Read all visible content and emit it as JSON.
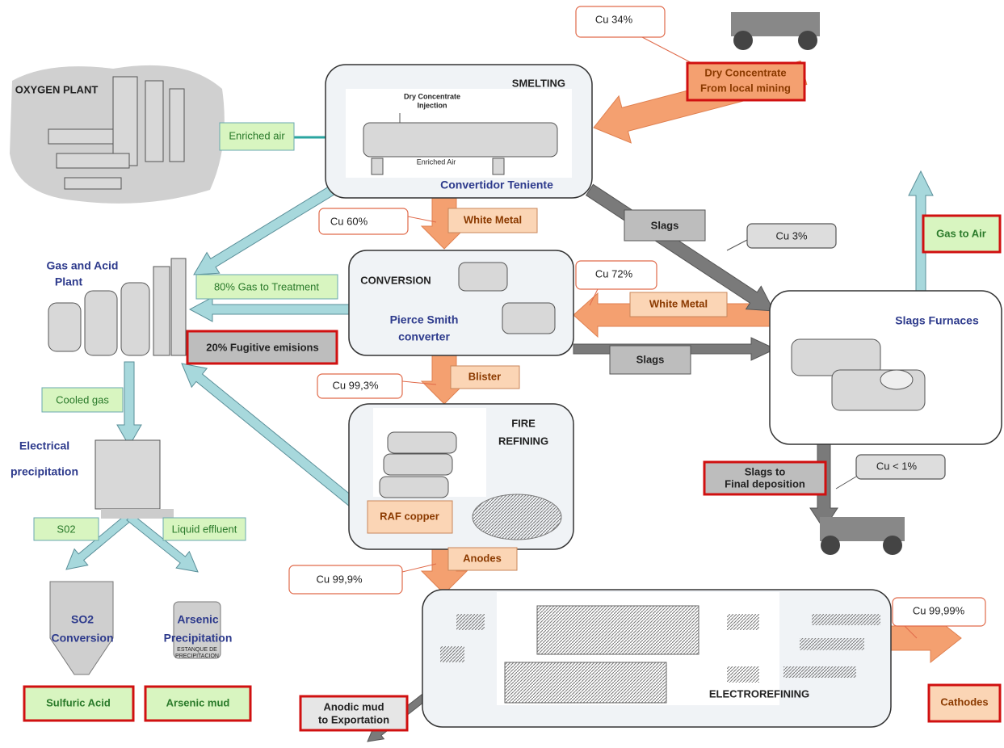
{
  "smelting": {
    "title": "SMELTING",
    "caption": "Convertidor Teniente",
    "injection": [
      "Dry Concentrate",
      "Injection"
    ],
    "air": "Enriched Air"
  },
  "conversion": {
    "title": "CONVERSION",
    "caption": [
      "Pierce Smith",
      "converter"
    ]
  },
  "fire_refining": {
    "title": [
      "FIRE",
      "REFINING"
    ],
    "product": "RAF copper"
  },
  "electrorefining": {
    "title": "ELECTROREFINING"
  },
  "slags_furnaces": {
    "title": "Slags Furnaces"
  },
  "plants": {
    "oxygen": "OXYGEN PLANT",
    "gas_acid": [
      "Gas and Acid",
      "Plant"
    ],
    "electrical": [
      "Electrical",
      "precipitation"
    ],
    "so2": [
      "SO2",
      "Conversion"
    ],
    "arsenic": [
      "Arsenic",
      "Precipitation"
    ],
    "tank": [
      "ESTANQUE DE",
      "PRECIPITACION"
    ]
  },
  "flows": {
    "enriched_air": "Enriched air",
    "white_metal_1": "White Metal",
    "slags_1": "Slags",
    "gas_to_air": "Gas to Air",
    "gas_treatment": "80% Gas to Treatment",
    "white_metal_2": "White Metal",
    "slags_2": "Slags",
    "blister": "Blister",
    "cooled_gas": "Cooled gas",
    "so2": "S02",
    "liquid": "Liquid effluent",
    "anodes": "Anodes"
  },
  "outputs": {
    "dry_concentrate": [
      "Dry Concentrate",
      "From local mining"
    ],
    "fugitive": "20% Fugitive emisions",
    "slags_final": [
      "Slags to",
      "Final deposition"
    ],
    "sulfuric": "Sulfuric Acid",
    "arsenic_mud": "Arsenic mud",
    "anodic_mud": [
      "Anodic mud",
      "to Exportation"
    ],
    "cathodes": "Cathodes"
  },
  "grades": {
    "concentrate": "Cu 34%",
    "white_metal": "Cu 60%",
    "slags": "Cu 3%",
    "white_metal_2": "Cu 72%",
    "blister": "Cu 99,3%",
    "slag_final": "Cu < 1%",
    "anodes": "Cu 99,9%",
    "cathodes": "Cu 99,99%"
  }
}
